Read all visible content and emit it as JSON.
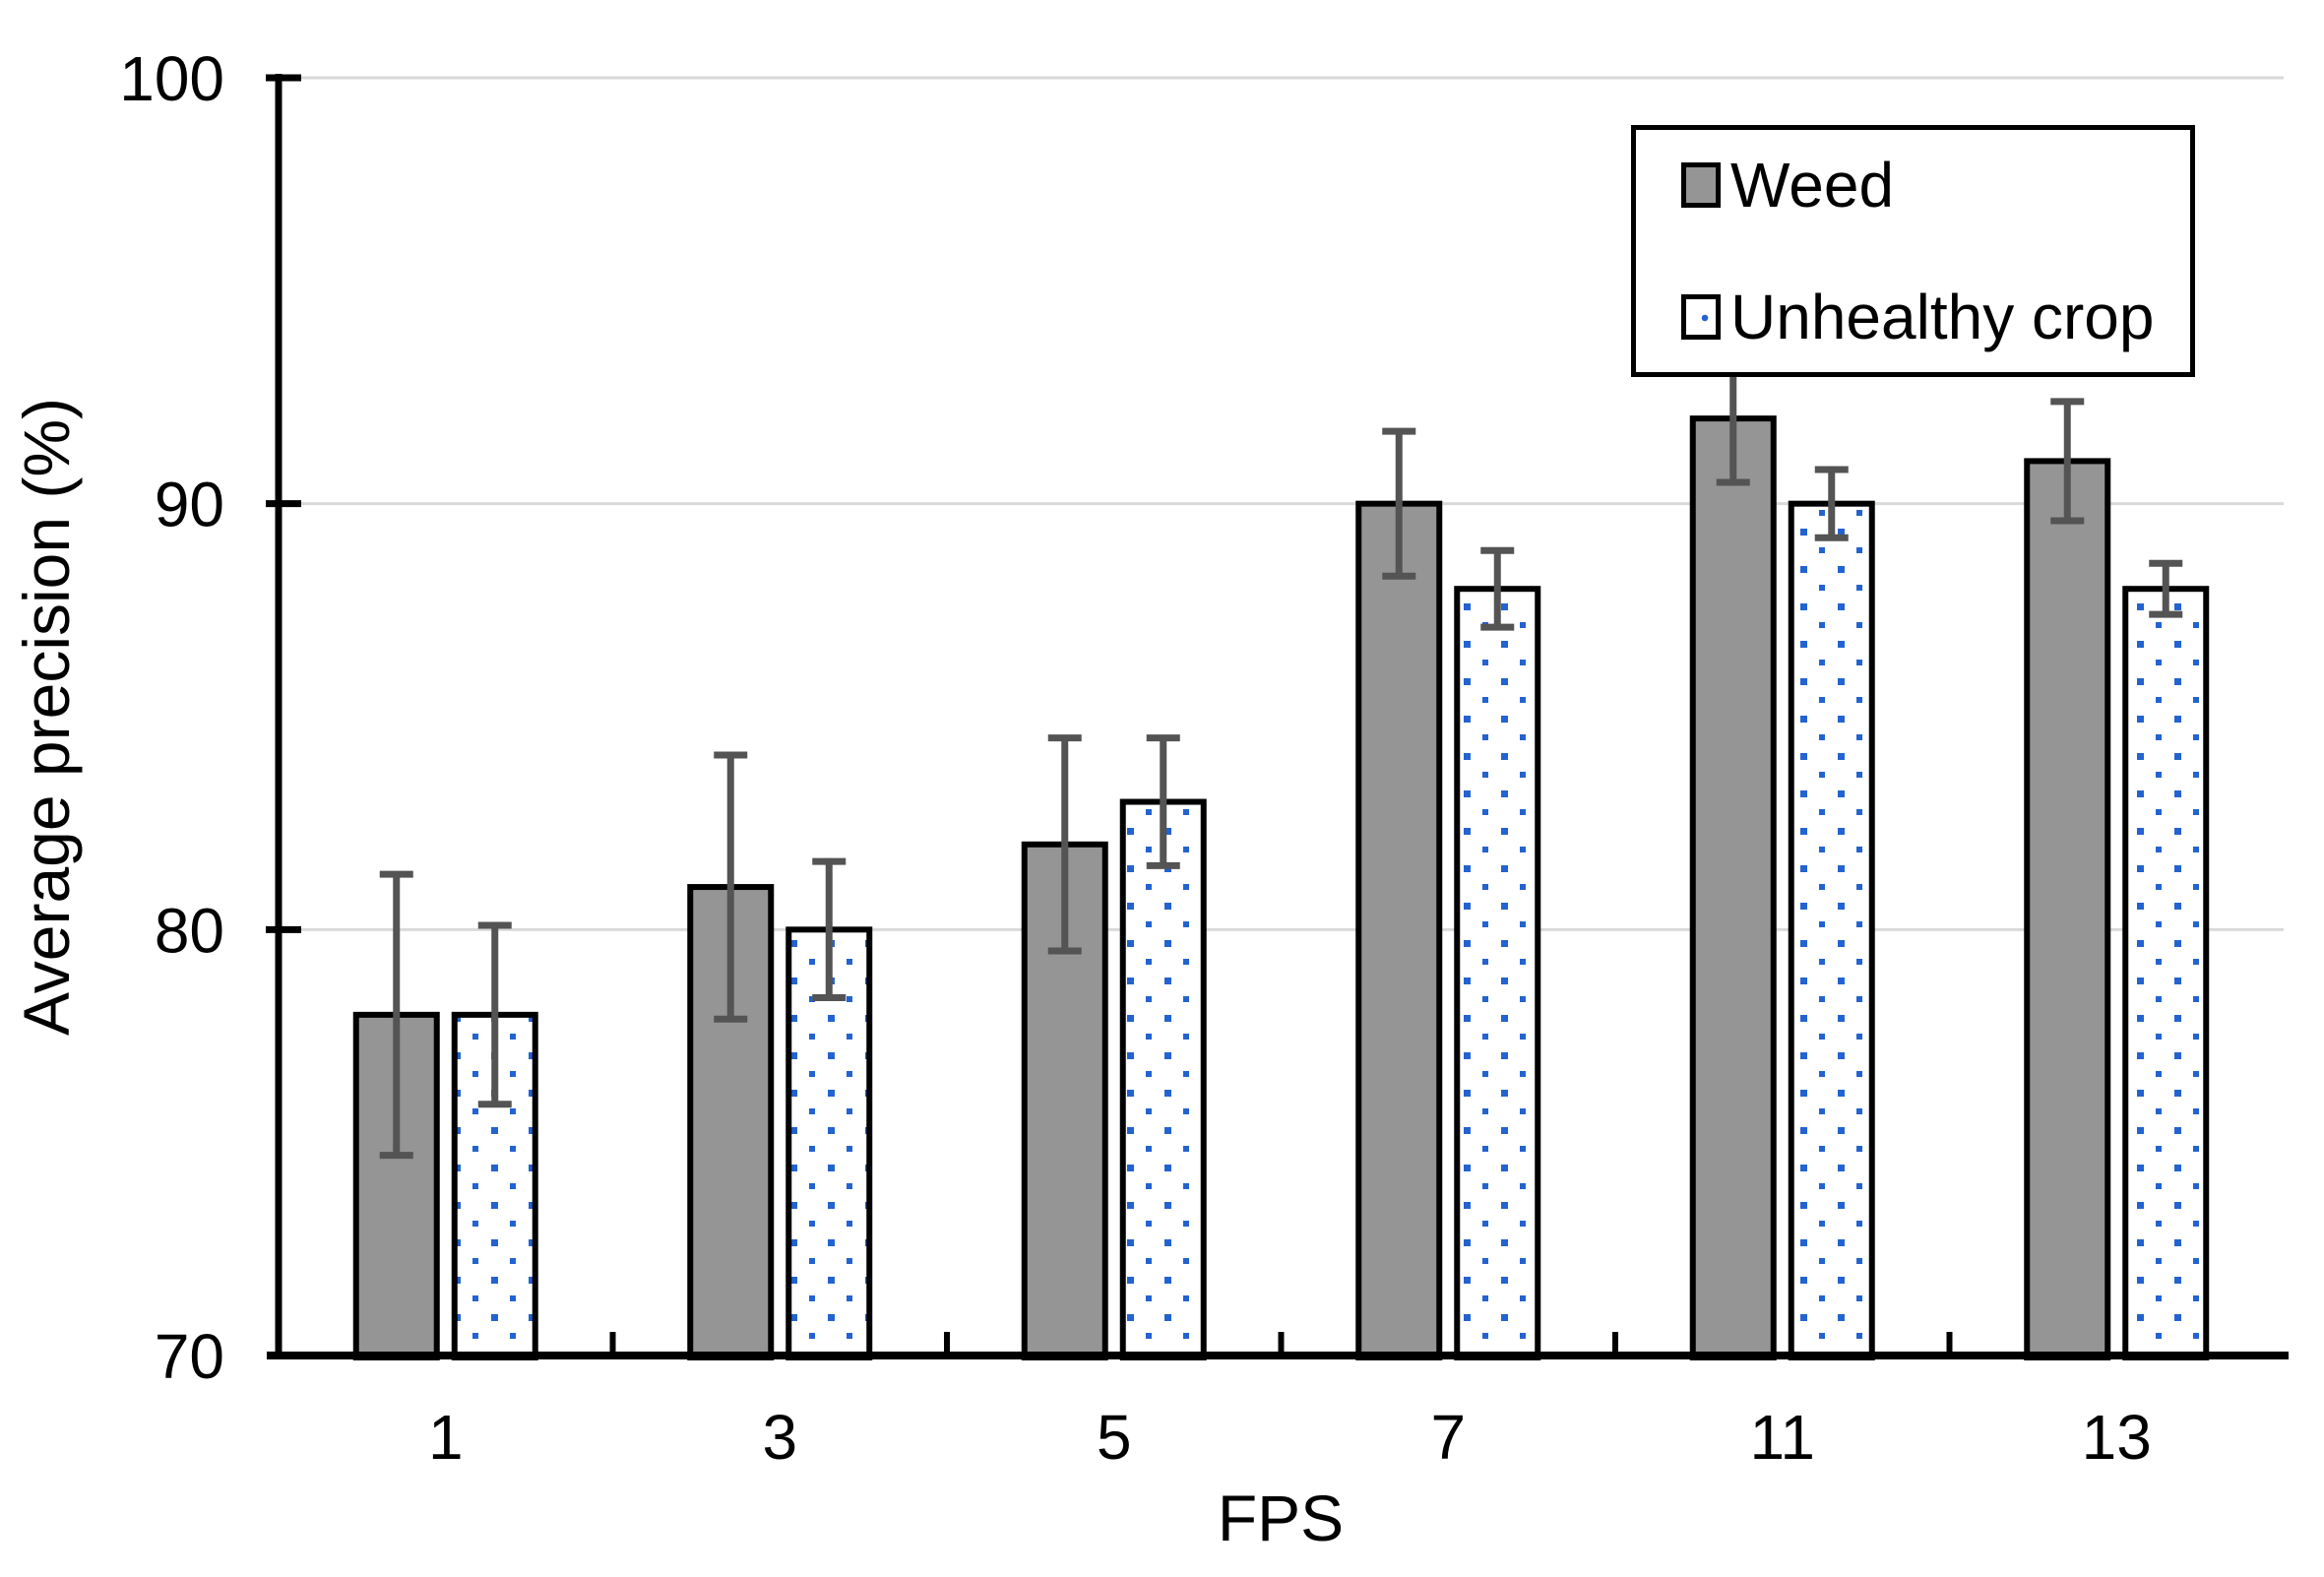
{
  "chart_data": {
    "type": "bar",
    "title": "",
    "xlabel": "FPS",
    "ylabel": "Average precision (%)",
    "categories": [
      "1",
      "3",
      "5",
      "7",
      "11",
      "13"
    ],
    "series": [
      {
        "name": "Weed",
        "style": "solid-gray",
        "values": [
          78,
          81,
          82,
          90,
          92,
          91
        ],
        "errors": [
          3.3,
          3.1,
          2.5,
          1.7,
          1.5,
          1.4
        ]
      },
      {
        "name": "Unhealthy crop",
        "style": "white-blue-dots",
        "values": [
          78,
          80,
          83,
          88,
          90,
          88
        ],
        "errors": [
          2.1,
          1.6,
          1.5,
          0.9,
          0.8,
          0.6
        ]
      }
    ],
    "ylim": [
      70,
      100
    ],
    "yticks": [
      70,
      80,
      90,
      100
    ],
    "grid": "horizontal",
    "legend_position": "top-right"
  },
  "colors": {
    "background": "#FFFFFF",
    "bar_gray": "#959595",
    "bar_border": "#000000",
    "dot_blue": "#2363D1",
    "error_bar": "#545454",
    "gridline": "#D9D9D9",
    "axis": "#000000",
    "text": "#000000"
  }
}
